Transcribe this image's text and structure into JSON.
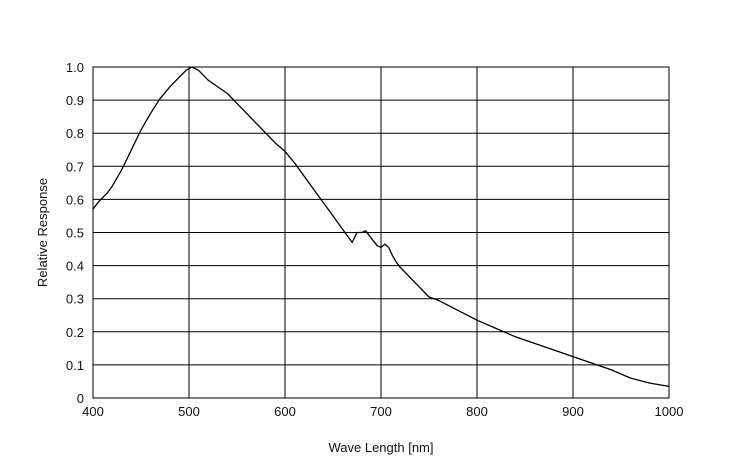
{
  "chart_data": {
    "type": "line",
    "title": "",
    "xlabel": "Wave Length [nm]",
    "ylabel": "Relative Response",
    "xlim": [
      400,
      1000
    ],
    "ylim": [
      0,
      1.0
    ],
    "grid": true,
    "x_ticks": [
      "400",
      "500",
      "600",
      "700",
      "800",
      "900",
      "1000"
    ],
    "y_ticks": [
      "0",
      "0.1",
      "0.2",
      "0.3",
      "0.4",
      "0.5",
      "0.6",
      "0.7",
      "0.8",
      "0.9",
      "1.0"
    ],
    "series": [
      {
        "x": [
          400,
          405,
          410,
          415,
          420,
          430,
          440,
          450,
          460,
          470,
          480,
          490,
          497,
          500,
          503,
          510,
          515,
          520,
          530,
          540,
          550,
          560,
          570,
          580,
          590,
          600,
          610,
          620,
          630,
          640,
          650,
          660,
          670,
          675,
          680,
          684,
          688,
          692,
          696,
          700,
          704,
          708,
          712,
          716,
          720,
          730,
          740,
          750,
          760,
          780,
          800,
          820,
          840,
          860,
          880,
          900,
          920,
          940,
          960,
          980,
          1000
        ],
        "y": [
          0.57,
          0.59,
          0.605,
          0.62,
          0.64,
          0.69,
          0.75,
          0.81,
          0.86,
          0.905,
          0.94,
          0.97,
          0.99,
          0.995,
          1.0,
          0.99,
          0.975,
          0.96,
          0.94,
          0.92,
          0.89,
          0.86,
          0.83,
          0.8,
          0.77,
          0.745,
          0.71,
          0.67,
          0.63,
          0.59,
          0.55,
          0.51,
          0.47,
          0.5,
          0.5,
          0.505,
          0.49,
          0.475,
          0.46,
          0.455,
          0.465,
          0.455,
          0.43,
          0.41,
          0.395,
          0.365,
          0.335,
          0.305,
          0.295,
          0.265,
          0.235,
          0.21,
          0.185,
          0.165,
          0.145,
          0.125,
          0.105,
          0.085,
          0.06,
          0.045,
          0.035
        ]
      }
    ]
  }
}
